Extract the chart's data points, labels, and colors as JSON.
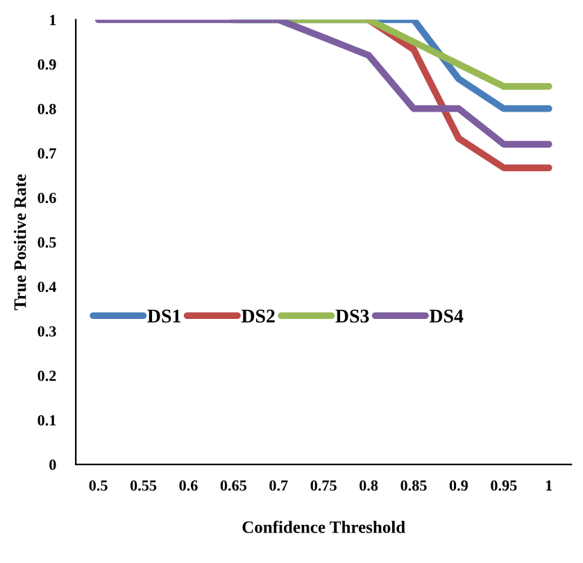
{
  "chart_data": {
    "type": "line",
    "xlabel": "Confidence Threshold",
    "ylabel": "True Positive Rate",
    "categories": [
      "0.5",
      "0.55",
      "0.6",
      "0.65",
      "0.7",
      "0.75",
      "0.8",
      "0.85",
      "0.9",
      "0.95",
      "1"
    ],
    "series": [
      {
        "name": "DS1",
        "color": "#4a7ebb",
        "values": [
          null,
          null,
          null,
          1,
          1,
          1,
          1,
          1,
          0.867,
          0.8,
          0.8
        ]
      },
      {
        "name": "DS2",
        "color": "#be4b48",
        "values": [
          null,
          null,
          null,
          null,
          null,
          null,
          1,
          0.933,
          0.733,
          0.667,
          0.667
        ]
      },
      {
        "name": "DS3",
        "color": "#98b954",
        "values": [
          null,
          null,
          null,
          1,
          1,
          1,
          1,
          0.95,
          0.9,
          0.85,
          0.85
        ]
      },
      {
        "name": "DS4",
        "color": "#7d5fa0",
        "values": [
          1,
          1,
          1,
          1,
          1,
          0.96,
          0.92,
          0.8,
          0.8,
          0.72,
          0.72
        ]
      }
    ],
    "ylim": [
      0,
      1
    ],
    "yticks": [
      0,
      0.1,
      0.2,
      0.3,
      0.4,
      0.5,
      0.6,
      0.7,
      0.8,
      0.9,
      1
    ],
    "grid": false,
    "legend": "center",
    "marker": "none",
    "line_style": "solid"
  }
}
